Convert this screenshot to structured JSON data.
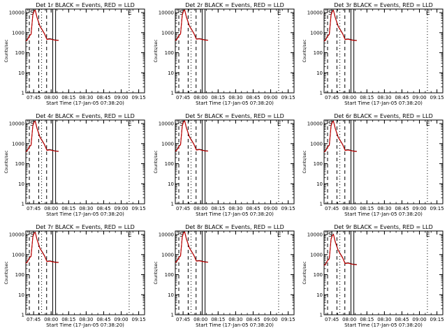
{
  "figure": {
    "xlabel": "Start Time (17-Jan-05 07:38:20)",
    "ylabel": "Counts/sec",
    "x_ticks": [
      "07:45",
      "08:00",
      "08:15",
      "08:30",
      "08:45",
      "09:00",
      "09:15"
    ],
    "y_ticks": [
      "1",
      "10",
      "100",
      "1000",
      "10000"
    ],
    "colors": {
      "events": "#000000",
      "lld": "#cc0000",
      "axes": "#000000"
    }
  },
  "chart_data": [
    {
      "type": "line",
      "title": "Det 1r BLACK = Events, RED = LLD",
      "xlabel": "Start Time (17-Jan-05 07:38:20)",
      "ylabel": "Counts/sec",
      "y_scale": "log",
      "ylim": [
        1,
        15000
      ],
      "xlim_minutes_from_start": [
        0,
        101.7
      ],
      "series": [
        {
          "name": "Events",
          "x": [
            0,
            1.5,
            3,
            4.5,
            6,
            7,
            8,
            9.5,
            12,
            16,
            18,
            20.5,
            22,
            25,
            28
          ],
          "y": [
            400,
            480,
            700,
            850,
            8000,
            12000,
            13500,
            6000,
            2200,
            900,
            480,
            500,
            480,
            430,
            420
          ]
        },
        {
          "name": "LLD",
          "x": [
            0,
            1.5,
            3,
            4.5,
            6,
            7,
            8,
            9.5,
            12,
            16,
            18,
            20.5,
            22,
            25,
            28
          ],
          "y": [
            380,
            460,
            680,
            820,
            7500,
            11500,
            13000,
            5800,
            2100,
            870,
            460,
            480,
            460,
            420,
            410
          ]
        }
      ],
      "event_lines": {
        "dashed": [
          3,
          11,
          17.8
        ],
        "solid": [
          23,
          25.5
        ],
        "dotted": [
          13.5,
          88.5
        ]
      },
      "flags": {
        "S": 5.3,
        "E": 89
      }
    },
    {
      "type": "line",
      "title": "Det 2r BLACK = Events, RED = LLD",
      "xlabel": "Start Time (17-Jan-05 07:38:20)",
      "ylabel": "Counts/sec",
      "y_scale": "log",
      "ylim": [
        1,
        15000
      ],
      "xlim_minutes_from_start": [
        0,
        101.7
      ],
      "series": [
        {
          "name": "Events",
          "x": [
            0,
            1.5,
            3,
            4.5,
            6,
            7,
            8,
            9.5,
            12,
            16,
            18,
            20.5,
            22,
            25,
            28
          ],
          "y": [
            420,
            500,
            720,
            880,
            8200,
            12200,
            13800,
            6100,
            2250,
            920,
            490,
            510,
            490,
            440,
            425
          ]
        },
        {
          "name": "LLD",
          "x": [
            0,
            1.5,
            3,
            4.5,
            6,
            7,
            8,
            9.5,
            12,
            16,
            18,
            20.5,
            22,
            25,
            28
          ],
          "y": [
            400,
            480,
            700,
            850,
            7700,
            11700,
            13300,
            5900,
            2150,
            890,
            470,
            490,
            470,
            430,
            415
          ]
        }
      ],
      "event_lines": {
        "dashed": [
          3,
          11,
          17.8
        ],
        "solid": [
          23,
          25.5
        ],
        "dotted": [
          13.5,
          88.5
        ]
      },
      "flags": {
        "S": 5.3,
        "E": 89
      }
    },
    {
      "type": "line",
      "title": "Det 3r BLACK = Events, RED = LLD",
      "xlabel": "Start Time (17-Jan-05 07:38:20)",
      "ylabel": "Counts/sec",
      "y_scale": "log",
      "ylim": [
        1,
        15000
      ],
      "xlim_minutes_from_start": [
        0,
        101.7
      ],
      "series": [
        {
          "name": "Events",
          "x": [
            0,
            1.5,
            3,
            4.5,
            6,
            7,
            8,
            9.5,
            12,
            16,
            18,
            20.5,
            22,
            25,
            28
          ],
          "y": [
            390,
            470,
            690,
            840,
            7900,
            11900,
            13300,
            5950,
            2180,
            890,
            470,
            490,
            470,
            425,
            410
          ]
        },
        {
          "name": "LLD",
          "x": [
            0,
            1.5,
            3,
            4.5,
            6,
            7,
            8,
            9.5,
            12,
            16,
            18,
            20.5,
            22,
            25,
            28
          ],
          "y": [
            370,
            450,
            670,
            810,
            7400,
            11400,
            12800,
            5750,
            2080,
            860,
            450,
            470,
            450,
            415,
            400
          ]
        }
      ],
      "event_lines": {
        "dashed": [
          3,
          11,
          17.8
        ],
        "solid": [
          23,
          25.5
        ],
        "dotted": [
          13.5,
          88.5
        ]
      },
      "flags": {
        "S": 5.3,
        "E": 89
      }
    },
    {
      "type": "line",
      "title": "Det 4r BLACK = Events, RED = LLD",
      "xlabel": "Start Time (17-Jan-05 07:38:20)",
      "ylabel": "Counts/sec",
      "y_scale": "log",
      "ylim": [
        1,
        15000
      ],
      "xlim_minutes_from_start": [
        0,
        101.7
      ],
      "series": [
        {
          "name": "Events",
          "x": [
            0,
            1.5,
            3,
            4.5,
            6,
            7,
            8,
            9.5,
            12,
            16,
            18,
            20.5,
            22,
            25,
            28
          ],
          "y": [
            410,
            490,
            710,
            860,
            8100,
            12100,
            13600,
            6050,
            2230,
            910,
            485,
            505,
            485,
            435,
            420
          ]
        },
        {
          "name": "LLD",
          "x": [
            0,
            1.5,
            3,
            4.5,
            6,
            7,
            8,
            9.5,
            12,
            16,
            18,
            20.5,
            22,
            25,
            28
          ],
          "y": [
            390,
            470,
            690,
            830,
            7600,
            11600,
            13100,
            5850,
            2130,
            880,
            465,
            485,
            465,
            425,
            410
          ]
        }
      ],
      "event_lines": {
        "dashed": [
          3,
          11,
          17.8
        ],
        "solid": [
          23,
          25.5
        ],
        "dotted": [
          13.5,
          88.5
        ]
      },
      "flags": {
        "S": 5.3,
        "E": 89
      }
    },
    {
      "type": "line",
      "title": "Det 5r BLACK = Events, RED = LLD",
      "xlabel": "Start Time (17-Jan-05 07:38:20)",
      "ylabel": "Counts/sec",
      "y_scale": "log",
      "ylim": [
        1,
        15000
      ],
      "xlim_minutes_from_start": [
        0,
        101.7
      ],
      "series": [
        {
          "name": "Events",
          "x": [
            0,
            1.5,
            3,
            4.5,
            6,
            7,
            8,
            9.5,
            12,
            16,
            18,
            20.5,
            22,
            25,
            28
          ],
          "y": [
            430,
            510,
            730,
            900,
            8300,
            12300,
            14000,
            6200,
            2300,
            940,
            500,
            520,
            500,
            445,
            430
          ]
        },
        {
          "name": "LLD",
          "x": [
            0,
            1.5,
            3,
            4.5,
            6,
            7,
            8,
            9.5,
            12,
            16,
            18,
            20.5,
            22,
            25,
            28
          ],
          "y": [
            410,
            490,
            710,
            870,
            7800,
            11800,
            13500,
            6000,
            2200,
            910,
            480,
            500,
            480,
            435,
            420
          ]
        }
      ],
      "event_lines": {
        "dashed": [
          3,
          11,
          17.8
        ],
        "solid": [
          23,
          25.5
        ],
        "dotted": [
          13.5,
          88.5
        ]
      },
      "flags": {
        "S": 5.3,
        "E": 89
      }
    },
    {
      "type": "line",
      "title": "Det 6r BLACK = Events, RED = LLD",
      "xlabel": "Start Time (17-Jan-05 07:38:20)",
      "ylabel": "Counts/sec",
      "y_scale": "log",
      "ylim": [
        1,
        15000
      ],
      "xlim_minutes_from_start": [
        0,
        101.7
      ],
      "series": [
        {
          "name": "Events",
          "x": [
            0,
            1.5,
            3,
            4.5,
            6,
            7,
            8,
            9.5,
            12,
            16,
            18,
            20.5,
            22,
            25,
            28
          ],
          "y": [
            400,
            480,
            700,
            850,
            8000,
            12000,
            13500,
            6000,
            2200,
            900,
            480,
            500,
            480,
            430,
            415
          ]
        },
        {
          "name": "LLD",
          "x": [
            0,
            1.5,
            3,
            4.5,
            6,
            7,
            8,
            9.5,
            12,
            16,
            18,
            20.5,
            22,
            25,
            28
          ],
          "y": [
            380,
            460,
            680,
            820,
            7500,
            11500,
            13000,
            5800,
            2100,
            870,
            460,
            480,
            460,
            420,
            405
          ]
        }
      ],
      "event_lines": {
        "dashed": [
          3,
          11,
          17.8
        ],
        "solid": [
          23,
          25.5
        ],
        "dotted": [
          13.5,
          88.5
        ]
      },
      "flags": {
        "S": 5.3,
        "E": 89
      }
    },
    {
      "type": "line",
      "title": "Det 7r BLACK = Events, RED = LLD",
      "xlabel": "Start Time (17-Jan-05 07:38:20)",
      "ylabel": "Counts/sec",
      "y_scale": "log",
      "ylim": [
        1,
        15000
      ],
      "xlim_minutes_from_start": [
        0,
        101.7
      ],
      "series": [
        {
          "name": "Events",
          "x": [
            0,
            1.5,
            3,
            4.5,
            6,
            7,
            8,
            9.5,
            12,
            16,
            18,
            20.5,
            22,
            25,
            28
          ],
          "y": [
            390,
            470,
            690,
            840,
            7900,
            11900,
            13300,
            5950,
            2180,
            890,
            470,
            490,
            470,
            425,
            410
          ]
        },
        {
          "name": "LLD",
          "x": [
            0,
            1.5,
            3,
            4.5,
            6,
            7,
            8,
            9.5,
            12,
            16,
            18,
            20.5,
            22,
            25,
            28
          ],
          "y": [
            370,
            450,
            670,
            810,
            7400,
            11400,
            12800,
            5750,
            2080,
            860,
            450,
            470,
            450,
            415,
            400
          ]
        }
      ],
      "event_lines": {
        "dashed": [
          3,
          11,
          17.8
        ],
        "solid": [
          23,
          25.5
        ],
        "dotted": [
          13.5,
          88.5
        ]
      },
      "flags": {
        "S": 5.3,
        "E": 89
      }
    },
    {
      "type": "line",
      "title": "Det 8r BLACK = Events, RED = LLD",
      "xlabel": "Start Time (17-Jan-05 07:38:20)",
      "ylabel": "Counts/sec",
      "y_scale": "log",
      "ylim": [
        1,
        15000
      ],
      "xlim_minutes_from_start": [
        0,
        101.7
      ],
      "series": [
        {
          "name": "Events",
          "x": [
            0,
            1.5,
            3,
            4.5,
            6,
            7,
            8,
            9.5,
            12,
            16,
            18,
            20.5,
            22,
            25,
            28
          ],
          "y": [
            420,
            500,
            720,
            880,
            8200,
            12200,
            13800,
            6100,
            2250,
            920,
            490,
            510,
            490,
            440,
            425
          ]
        },
        {
          "name": "LLD",
          "x": [
            0,
            1.5,
            3,
            4.5,
            6,
            7,
            8,
            9.5,
            12,
            16,
            18,
            20.5,
            22,
            25,
            28
          ],
          "y": [
            400,
            480,
            700,
            850,
            7700,
            11700,
            13300,
            5900,
            2150,
            890,
            470,
            490,
            470,
            430,
            415
          ]
        }
      ],
      "event_lines": {
        "dashed": [
          3,
          11,
          17.8
        ],
        "solid": [
          23,
          25.5
        ],
        "dotted": [
          13.5,
          88.5
        ]
      },
      "flags": {
        "S": 5.3,
        "E": 89
      }
    },
    {
      "type": "line",
      "title": "Det 9r BLACK = Events, RED = LLD",
      "xlabel": "Start Time (17-Jan-05 07:38:20)",
      "ylabel": "Counts/sec",
      "y_scale": "log",
      "ylim": [
        1,
        15000
      ],
      "xlim_minutes_from_start": [
        0,
        101.7
      ],
      "series": [
        {
          "name": "Events",
          "x": [
            0,
            1.5,
            3,
            4.5,
            6,
            7,
            8,
            9.5,
            12,
            16,
            18,
            20.5,
            22,
            25,
            28
          ],
          "y": [
            300,
            360,
            520,
            640,
            6000,
            9000,
            10500,
            4600,
            1700,
            700,
            370,
            390,
            370,
            330,
            320
          ]
        },
        {
          "name": "LLD",
          "x": [
            0,
            1.5,
            3,
            4.5,
            6,
            7,
            8,
            9.5,
            12,
            16,
            18,
            20.5,
            22,
            25,
            28
          ],
          "y": [
            285,
            345,
            500,
            615,
            5700,
            8600,
            10100,
            4400,
            1630,
            670,
            355,
            375,
            355,
            320,
            310
          ]
        }
      ],
      "event_lines": {
        "dashed": [
          3,
          11,
          17.8
        ],
        "solid": [
          23,
          25.5
        ],
        "dotted": [
          13.5,
          88.5
        ]
      },
      "flags": {
        "S": 5.3,
        "E": 89
      }
    }
  ]
}
